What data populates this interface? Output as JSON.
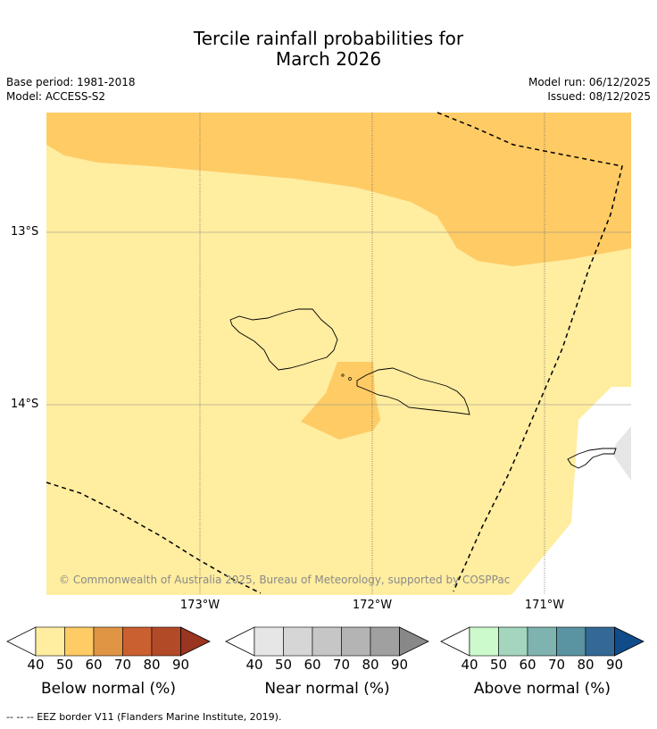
{
  "title_line1": "Tercile rainfall probabilities for",
  "title_line2": "March 2026",
  "base_period": "Base period: 1981-2018",
  "model": "Model: ACCESS-S2",
  "model_run": "Model run: 06/12/2025",
  "issued": "Issued: 08/12/2025",
  "lat_labels": [
    "13°S",
    "14°S"
  ],
  "lon_labels": [
    "173°W",
    "172°W",
    "171°W"
  ],
  "copyright": "© Commonwealth of Australia 2025, Bureau of Meteorology, supported by COSPPac",
  "colorbars": [
    {
      "title": "Below normal (%)",
      "ticks": [
        "40",
        "50",
        "60",
        "70",
        "80",
        "90"
      ],
      "colors": [
        "#ffeda0",
        "#fecb65",
        "#e09545",
        "#ca6030",
        "#b34a27",
        "#993520"
      ]
    },
    {
      "title": "Near normal (%)",
      "ticks": [
        "40",
        "50",
        "60",
        "70",
        "80",
        "90"
      ],
      "colors": [
        "#e6e6e6",
        "#d6d6d6",
        "#c6c6c6",
        "#b4b4b4",
        "#a0a0a0",
        "#888888"
      ]
    },
    {
      "title": "Above normal (%)",
      "ticks": [
        "40",
        "50",
        "60",
        "70",
        "80",
        "90"
      ],
      "colors": [
        "#ccfacc",
        "#a3d6bd",
        "#7fb3af",
        "#5a93a1",
        "#346996",
        "#104b8a"
      ]
    }
  ],
  "footer": "--  --  -- EEZ border V11 (Flanders Marine Institute, 2019).",
  "colors": {
    "below_40_50": "#ffeda0",
    "below_50_60": "#fecb65",
    "near_40_50": "#e6e6e6"
  }
}
